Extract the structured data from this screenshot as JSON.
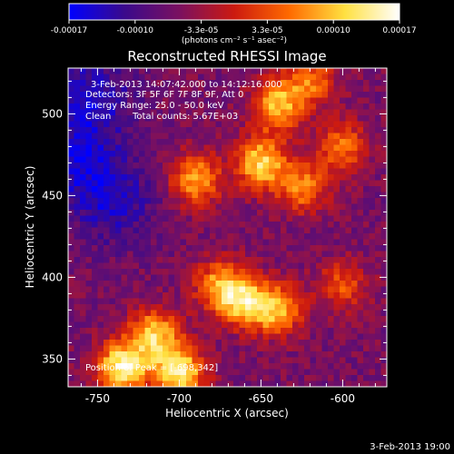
{
  "chart_data": {
    "type": "heatmap",
    "title": "Reconstructed RHESSI Image",
    "xlabel": "Heliocentric X (arcsec)",
    "ylabel": "Heliocentric Y (arcsec)",
    "xlim": [
      -768,
      -573
    ],
    "ylim": [
      333,
      528
    ],
    "x_ticks": [
      -750,
      -700,
      -650,
      -600
    ],
    "y_ticks": [
      350,
      400,
      450,
      500
    ],
    "colorbar": {
      "range": [
        -0.00017,
        0.00017
      ],
      "tick_labels": [
        "-0.00017",
        "-0.00010",
        "-3.3e-05",
        "3.3e-05",
        "0.00010",
        "0.00017"
      ],
      "unit": "(photons cm⁻² s⁻¹ asec⁻²)",
      "colors": [
        "#0000ff",
        "#3a0a8c",
        "#7a1060",
        "#cc1a10",
        "#ff6a00",
        "#ffe040",
        "#ffffff"
      ]
    },
    "annotations": {
      "time_range": "3-Feb-2013 14:07:42.000 to 14:12:16.000",
      "detectors": "Detectors: 3F 5F 6F 7F 8F 9F, Att 0",
      "energy": "Energy Range: 25.0 - 50.0 keV",
      "clean": "Clean",
      "counts": "Total counts: 5.67E+03",
      "peak": "Position of Peak = [-698,342]"
    },
    "peak": {
      "x": -698,
      "y": 342
    },
    "hotspots": [
      {
        "x": -735,
        "y": 345,
        "intensity": 1.0
      },
      {
        "x": -700,
        "y": 342,
        "intensity": 0.95
      },
      {
        "x": -715,
        "y": 365,
        "intensity": 0.8
      },
      {
        "x": -660,
        "y": 385,
        "intensity": 0.75
      },
      {
        "x": -640,
        "y": 380,
        "intensity": 0.7
      },
      {
        "x": -675,
        "y": 395,
        "intensity": 0.65
      },
      {
        "x": -650,
        "y": 470,
        "intensity": 0.85
      },
      {
        "x": -640,
        "y": 505,
        "intensity": 0.75
      },
      {
        "x": -690,
        "y": 460,
        "intensity": 0.7
      },
      {
        "x": -625,
        "y": 455,
        "intensity": 0.6
      },
      {
        "x": -600,
        "y": 480,
        "intensity": 0.55
      },
      {
        "x": -620,
        "y": 520,
        "intensity": 0.55
      },
      {
        "x": -600,
        "y": 395,
        "intensity": 0.45
      }
    ],
    "coldspots": [
      {
        "x": -755,
        "y": 510,
        "intensity": 0.7
      },
      {
        "x": -740,
        "y": 445,
        "intensity": 0.55
      },
      {
        "x": -760,
        "y": 470,
        "intensity": 0.6
      }
    ]
  },
  "footer": {
    "date_stamp": "3-Feb-2013 19:00"
  }
}
